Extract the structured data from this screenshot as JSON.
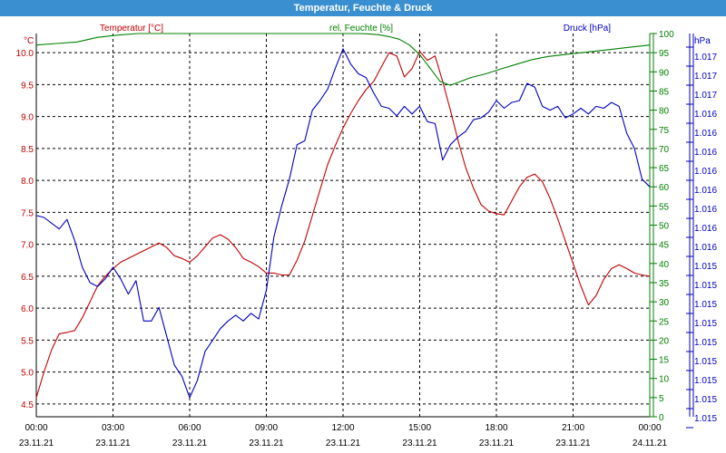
{
  "window": {
    "title": "Temperatur, Feuchte & Druck"
  },
  "colors": {
    "temperature": "#c00000",
    "humidity": "#008000",
    "pressure": "#0000c0",
    "grid": "#000000",
    "titlebar": "#3a8fd0"
  },
  "chart_data": {
    "type": "line",
    "title": "Temperatur, Feuchte & Druck",
    "grid": true,
    "x_ticks": [
      {
        "time": "00:00",
        "date": "23.11.21"
      },
      {
        "time": "03:00",
        "date": "23.11.21"
      },
      {
        "time": "06:00",
        "date": "23.11.21"
      },
      {
        "time": "09:00",
        "date": "23.11.21"
      },
      {
        "time": "12:00",
        "date": "23.11.21"
      },
      {
        "time": "15:00",
        "date": "23.11.21"
      },
      {
        "time": "18:00",
        "date": "23.11.21"
      },
      {
        "time": "21:00",
        "date": "23.11.21"
      },
      {
        "time": "00:00",
        "date": "24.11.21"
      }
    ],
    "xlim_hours": [
      0,
      24
    ],
    "axes": {
      "temperature": {
        "label": "Temperatur [°C]",
        "unit": "°C",
        "ylim": [
          4.3,
          10.3
        ],
        "ticks": [
          "10.0",
          "9.5",
          "9.0",
          "8.5",
          "8.0",
          "7.5",
          "7.0",
          "6.5",
          "6.0",
          "5.5",
          "5.0",
          "4.5"
        ]
      },
      "humidity": {
        "label": "rel. Feuchte [%]",
        "unit": "%",
        "ylim": [
          0,
          100
        ],
        "ticks": [
          "100",
          "95",
          "90",
          "85",
          "80",
          "75",
          "70",
          "65",
          "60",
          "55",
          "50",
          "45",
          "40",
          "35",
          "30",
          "25",
          "20",
          "15",
          "10",
          "5",
          "0"
        ]
      },
      "pressure": {
        "label": "Druck [hPa]",
        "unit": "hPa",
        "ylim": [
          0,
          100
        ],
        "ticks": [
          "1.017",
          "1.017",
          "1.017",
          "1.016",
          "1.016",
          "1.016",
          "1.016",
          "1.016",
          "1.016",
          "1.016",
          "1.016",
          "1.015",
          "1.015",
          "1.015",
          "1.015",
          "1.015",
          "1.015",
          "1.015",
          "1.015",
          "1.015"
        ]
      }
    },
    "series": [
      {
        "name": "Temperatur [°C]",
        "axis": "temperature",
        "color": "#c00000",
        "x": [
          0,
          0.3,
          0.6,
          0.9,
          1.2,
          1.5,
          1.8,
          2.1,
          2.4,
          2.7,
          3.0,
          3.3,
          3.6,
          3.9,
          4.2,
          4.5,
          4.8,
          5.1,
          5.4,
          5.7,
          6.0,
          6.3,
          6.6,
          6.9,
          7.2,
          7.5,
          7.8,
          8.1,
          8.4,
          8.7,
          9.0,
          9.3,
          9.6,
          9.9,
          10.2,
          10.5,
          10.8,
          11.1,
          11.4,
          11.7,
          12.0,
          12.3,
          12.6,
          12.9,
          13.2,
          13.5,
          13.8,
          14.1,
          14.4,
          14.7,
          15.0,
          15.3,
          15.6,
          15.9,
          16.2,
          16.5,
          16.8,
          17.1,
          17.4,
          17.7,
          18.0,
          18.3,
          18.6,
          18.9,
          19.2,
          19.5,
          19.8,
          20.1,
          20.4,
          20.7,
          21.0,
          21.3,
          21.6,
          21.9,
          22.2,
          22.5,
          22.8,
          23.1,
          23.4,
          23.7,
          24.0
        ],
        "values": [
          4.6,
          5.0,
          5.35,
          5.6,
          5.62,
          5.65,
          5.85,
          6.1,
          6.35,
          6.5,
          6.62,
          6.72,
          6.78,
          6.84,
          6.9,
          6.96,
          7.02,
          6.95,
          6.82,
          6.78,
          6.72,
          6.82,
          6.96,
          7.1,
          7.15,
          7.08,
          6.95,
          6.78,
          6.72,
          6.65,
          6.55,
          6.55,
          6.52,
          6.52,
          6.75,
          7.05,
          7.45,
          7.85,
          8.25,
          8.55,
          8.82,
          9.05,
          9.25,
          9.42,
          9.55,
          9.78,
          10.0,
          9.95,
          9.62,
          9.75,
          10.02,
          9.88,
          9.95,
          9.55,
          9.1,
          8.62,
          8.2,
          7.88,
          7.62,
          7.52,
          7.48,
          7.46,
          7.68,
          7.9,
          8.05,
          8.1,
          7.98,
          7.72,
          7.4,
          7.05,
          6.7,
          6.35,
          6.05,
          6.2,
          6.45,
          6.62,
          6.68,
          6.62,
          6.55,
          6.52,
          6.5
        ]
      },
      {
        "name": "rel. Feuchte [%]",
        "axis": "humidity",
        "color": "#008000",
        "x": [
          0,
          0.8,
          1.6,
          2.4,
          3.2,
          4.0,
          12.6,
          13.0,
          13.4,
          13.8,
          14.2,
          14.6,
          15.0,
          15.4,
          15.8,
          16.2,
          16.6,
          17.0,
          17.6,
          18.2,
          18.8,
          19.4,
          20.0,
          20.8,
          21.6,
          22.4,
          23.2,
          24.0
        ],
        "values": [
          97,
          97.4,
          97.8,
          99,
          99.6,
          100,
          100,
          99.9,
          99.7,
          99.2,
          98.5,
          97,
          94.5,
          91,
          87.5,
          86.5,
          87.5,
          88.5,
          89.5,
          90.8,
          92,
          93.2,
          94,
          94.6,
          95.2,
          95.8,
          96.4,
          97
        ]
      },
      {
        "name": "Druck [hPa]",
        "axis": "pressure",
        "color": "#0000c0",
        "x": [
          0,
          0.3,
          0.6,
          0.9,
          1.2,
          1.5,
          1.8,
          2.1,
          2.4,
          2.7,
          3.0,
          3.3,
          3.6,
          3.9,
          4.2,
          4.5,
          4.8,
          5.1,
          5.4,
          5.7,
          6.0,
          6.3,
          6.6,
          6.9,
          7.2,
          7.5,
          7.8,
          8.1,
          8.4,
          8.7,
          9.0,
          9.3,
          9.6,
          9.9,
          10.2,
          10.5,
          10.8,
          11.1,
          11.4,
          11.7,
          12.0,
          12.3,
          12.6,
          12.9,
          13.2,
          13.5,
          13.8,
          14.1,
          14.4,
          14.7,
          15.0,
          15.3,
          15.6,
          15.9,
          16.2,
          16.5,
          16.8,
          17.1,
          17.4,
          17.7,
          18.0,
          18.3,
          18.6,
          18.9,
          19.2,
          19.5,
          19.8,
          20.1,
          20.4,
          20.7,
          21.0,
          21.3,
          21.6,
          21.9,
          22.2,
          22.5,
          22.8,
          23.1,
          23.4,
          23.7,
          24.0
        ],
        "values": [
          52.5,
          52,
          50.5,
          49,
          51.5,
          46,
          39,
          35,
          34,
          36,
          39,
          36,
          32,
          35.5,
          25,
          25,
          28.5,
          21,
          13.5,
          10.5,
          5,
          9.5,
          17,
          20,
          23,
          25,
          26.5,
          25,
          27,
          25.5,
          33,
          47,
          55,
          62,
          71,
          72,
          80,
          82.5,
          85.5,
          91,
          96,
          92,
          89.5,
          88.5,
          84.5,
          81,
          80.5,
          78.5,
          81,
          79,
          81,
          77,
          76.5,
          67,
          71,
          73,
          74.5,
          77.5,
          78,
          79.5,
          82.5,
          80.5,
          82,
          82.5,
          87,
          86,
          81,
          80,
          81,
          78,
          79,
          80.5,
          79,
          81,
          80.5,
          82,
          81,
          74,
          70,
          62,
          60
        ]
      }
    ]
  }
}
